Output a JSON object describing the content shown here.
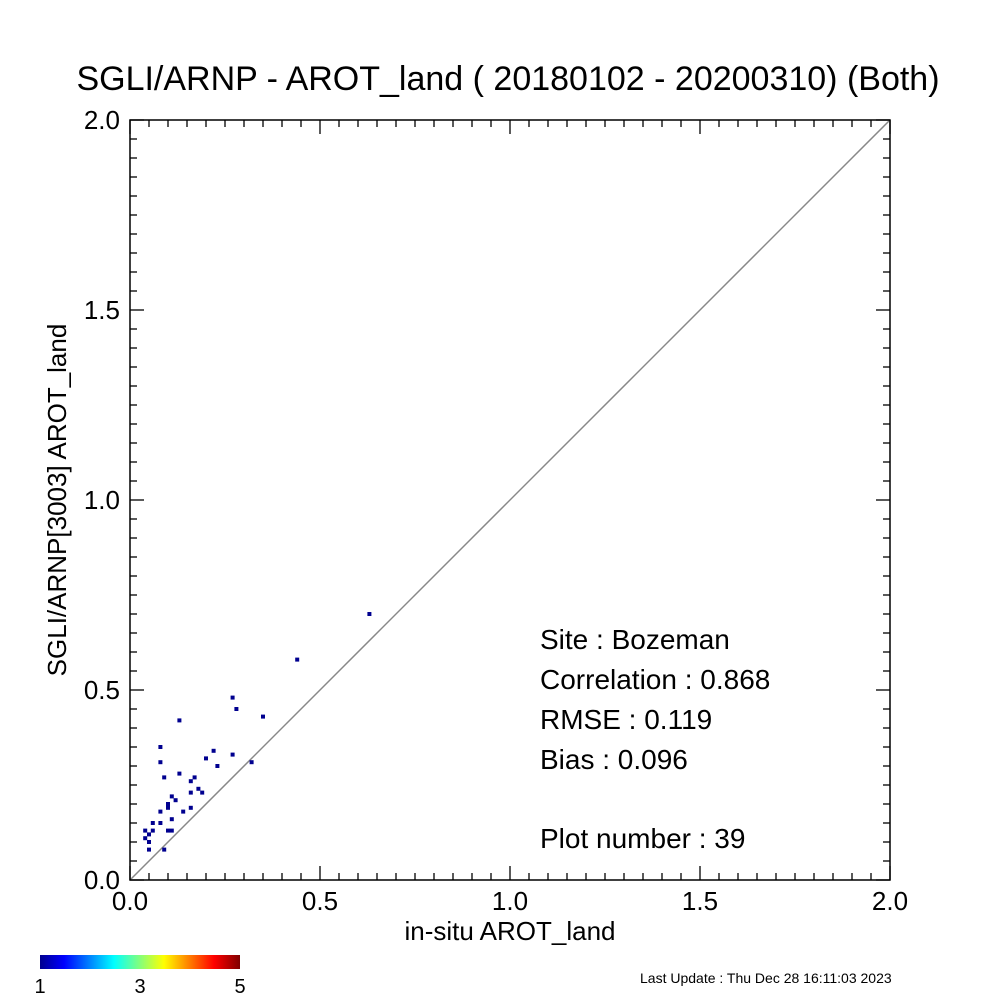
{
  "chart_data": {
    "type": "scatter",
    "title": "SGLI/ARNP - AROT_land ( 20180102 - 20200310) (Both)",
    "xlabel": "in-situ AROT_land",
    "ylabel": "SGLI/ARNP[3003]    AROT_land",
    "xlim": [
      0,
      2
    ],
    "ylim": [
      0,
      2
    ],
    "x_ticks": [
      "0.0",
      "0.5",
      "1.0",
      "1.5",
      "2.0"
    ],
    "y_ticks": [
      "0.0",
      "0.5",
      "1.0",
      "1.5",
      "2.0"
    ],
    "reference_line": "1:1",
    "points": [
      {
        "x": 0.63,
        "y": 0.7
      },
      {
        "x": 0.44,
        "y": 0.58
      },
      {
        "x": 0.35,
        "y": 0.43
      },
      {
        "x": 0.32,
        "y": 0.31
      },
      {
        "x": 0.27,
        "y": 0.48
      },
      {
        "x": 0.28,
        "y": 0.45
      },
      {
        "x": 0.27,
        "y": 0.33
      },
      {
        "x": 0.23,
        "y": 0.3
      },
      {
        "x": 0.22,
        "y": 0.34
      },
      {
        "x": 0.2,
        "y": 0.32
      },
      {
        "x": 0.19,
        "y": 0.23
      },
      {
        "x": 0.18,
        "y": 0.24
      },
      {
        "x": 0.17,
        "y": 0.27
      },
      {
        "x": 0.16,
        "y": 0.26
      },
      {
        "x": 0.16,
        "y": 0.23
      },
      {
        "x": 0.16,
        "y": 0.19
      },
      {
        "x": 0.14,
        "y": 0.18
      },
      {
        "x": 0.13,
        "y": 0.42
      },
      {
        "x": 0.13,
        "y": 0.28
      },
      {
        "x": 0.12,
        "y": 0.21
      },
      {
        "x": 0.11,
        "y": 0.22
      },
      {
        "x": 0.1,
        "y": 0.2
      },
      {
        "x": 0.1,
        "y": 0.19
      },
      {
        "x": 0.11,
        "y": 0.16
      },
      {
        "x": 0.1,
        "y": 0.13
      },
      {
        "x": 0.11,
        "y": 0.13
      },
      {
        "x": 0.08,
        "y": 0.35
      },
      {
        "x": 0.08,
        "y": 0.31
      },
      {
        "x": 0.09,
        "y": 0.27
      },
      {
        "x": 0.08,
        "y": 0.18
      },
      {
        "x": 0.08,
        "y": 0.15
      },
      {
        "x": 0.09,
        "y": 0.08
      },
      {
        "x": 0.06,
        "y": 0.15
      },
      {
        "x": 0.06,
        "y": 0.13
      },
      {
        "x": 0.05,
        "y": 0.12
      },
      {
        "x": 0.04,
        "y": 0.13
      },
      {
        "x": 0.05,
        "y": 0.1
      },
      {
        "x": 0.04,
        "y": 0.11
      },
      {
        "x": 0.05,
        "y": 0.08
      }
    ],
    "point_color": "#00008f",
    "colorbar": {
      "range": [
        1,
        5
      ],
      "tick_labels": [
        "1",
        "3",
        "5"
      ],
      "colors": [
        "#00008f",
        "#0000ff",
        "#00ffff",
        "#ffff00",
        "#ff0000",
        "#800000"
      ]
    }
  },
  "stats": {
    "site": "Site : Bozeman",
    "correlation": "Correlation :     0.868",
    "rmse": "RMSE :     0.119",
    "bias": "Bias :     0.096",
    "plot_number": "Plot number :         39"
  },
  "footer": {
    "last_update": "Last Update : Thu Dec 28 16:11:03 2023"
  }
}
